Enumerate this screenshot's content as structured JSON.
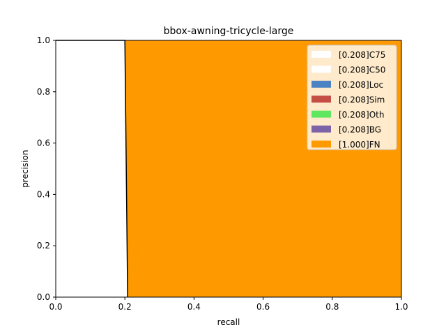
{
  "chart_data": {
    "type": "area",
    "title": "bbox-awning-tricycle-large",
    "xlabel": "recall",
    "ylabel": "precision",
    "xlim": [
      0,
      1
    ],
    "ylim": [
      0,
      1
    ],
    "x_ticks": [
      "0.0",
      "0.2",
      "0.4",
      "0.6",
      "0.8",
      "1.0"
    ],
    "y_ticks": [
      "0.0",
      "0.2",
      "0.4",
      "0.6",
      "0.8",
      "1.0"
    ],
    "grid": false,
    "legend_position": "top-right",
    "series": [
      {
        "name": "[0.208]C75",
        "color": "#ffffff",
        "points": [
          [
            0,
            1
          ],
          [
            0.2,
            1
          ],
          [
            0.208,
            0
          ]
        ]
      },
      {
        "name": "[0.208]C50",
        "color": "#ffffff",
        "points": [
          [
            0,
            1
          ],
          [
            0.2,
            1
          ],
          [
            0.208,
            0
          ]
        ]
      },
      {
        "name": "[0.208]Loc",
        "color": "#4c83c3",
        "points": [
          [
            0,
            1
          ],
          [
            0.2,
            1
          ],
          [
            0.208,
            0
          ]
        ]
      },
      {
        "name": "[0.208]Sim",
        "color": "#c44d44",
        "points": [
          [
            0,
            1
          ],
          [
            0.2,
            1
          ],
          [
            0.208,
            0
          ]
        ]
      },
      {
        "name": "[0.208]Oth",
        "color": "#5fe75f",
        "points": [
          [
            0,
            1
          ],
          [
            0.2,
            1
          ],
          [
            0.208,
            0
          ]
        ]
      },
      {
        "name": "[0.208]BG",
        "color": "#7c62a6",
        "points": [
          [
            0,
            1
          ],
          [
            0.2,
            1
          ],
          [
            0.208,
            0
          ]
        ]
      },
      {
        "name": "[1.000]FN",
        "color": "#ff9900",
        "points": [
          [
            0,
            1
          ],
          [
            1,
            1
          ],
          [
            1,
            0
          ]
        ]
      }
    ]
  }
}
